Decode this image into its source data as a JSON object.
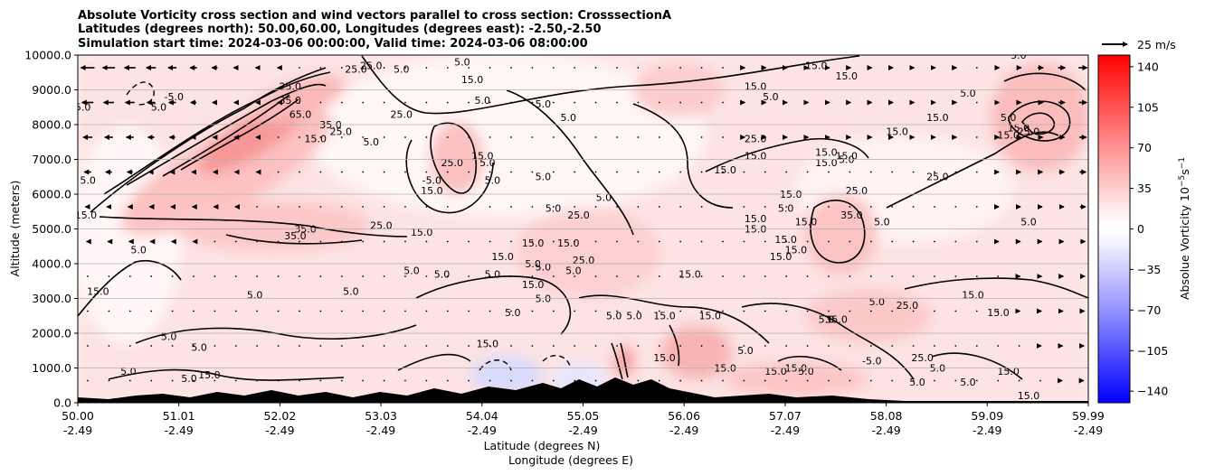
{
  "chart_data": {
    "type": "heatmap",
    "title_lines": [
      "Absolute Vorticity cross section and wind vectors parallel to cross section: CrosssectionA",
      "Latitudes (degrees north): 50.00,60.00, Longitudes (degrees east): -2.50,-2.50",
      "Simulation start time: 2024-03-06 00:00:00, Valid time: 2024-03-06 08:00:00"
    ],
    "ylabel": "Altitude (meters)",
    "xlabel_lines": [
      "Latitude (degrees N)",
      "Longitude (degrees E)"
    ],
    "x_tick_labels": [
      [
        "50.00",
        "-2.49"
      ],
      [
        "51.01",
        "-2.49"
      ],
      [
        "52.02",
        "-2.49"
      ],
      [
        "53.03",
        "-2.49"
      ],
      [
        "54.04",
        "-2.49"
      ],
      [
        "55.05",
        "-2.49"
      ],
      [
        "56.06",
        "-2.49"
      ],
      [
        "57.07",
        "-2.49"
      ],
      [
        "58.08",
        "-2.49"
      ],
      [
        "59.09",
        "-2.49"
      ],
      [
        "59.99",
        "-2.49"
      ]
    ],
    "xlim": [
      50.0,
      59.99
    ],
    "y_ticks": [
      0,
      1000,
      2000,
      3000,
      4000,
      5000,
      6000,
      7000,
      8000,
      9000,
      10000
    ],
    "y_tick_labels": [
      "0.0",
      "1000.0",
      "2000.0",
      "3000.0",
      "4000.0",
      "5000.0",
      "6000.0",
      "7000.0",
      "8000.0",
      "9000.0",
      "10000.0"
    ],
    "ylim": [
      0,
      10000
    ],
    "grid": "horizontal",
    "colorbar": {
      "label": "Absolue Vorticity 10$^{-5}$s$^{-1}$",
      "label_main": "Absolue Vorticity 10",
      "label_exp1": "−5",
      "label_mid": "s",
      "label_exp2": "−1",
      "ticks": [
        140,
        105,
        70,
        35,
        0,
        -35,
        -70,
        -105,
        -140
      ],
      "tick_labels": [
        "140",
        "105",
        "70",
        "35",
        "0",
        "−35",
        "−70",
        "−105",
        "−140"
      ],
      "range": [
        -150,
        150
      ],
      "colors": {
        "max": "#ff0000",
        "mid": "#ffffff",
        "min": "#0000ff"
      }
    },
    "wind_key": {
      "label": "25 m/s",
      "speed": 25
    },
    "contour_levels_labeled": [
      -5.0,
      5.0,
      15.0,
      25.0,
      35.0,
      65.0
    ],
    "contour_labels": [
      {
        "x": 50.95,
        "y": 8700,
        "v": "-5.0"
      },
      {
        "x": 50.05,
        "y": 8400,
        "v": "5.0"
      },
      {
        "x": 50.8,
        "y": 8400,
        "v": "5.0"
      },
      {
        "x": 50.1,
        "y": 6300,
        "v": "5.0"
      },
      {
        "x": 50.08,
        "y": 5300,
        "v": "15.0"
      },
      {
        "x": 52.75,
        "y": 9500,
        "v": "25.0"
      },
      {
        "x": 52.9,
        "y": 9600,
        "v": "25.0"
      },
      {
        "x": 53.2,
        "y": 9500,
        "v": "5.0"
      },
      {
        "x": 52.1,
        "y": 9000,
        "v": "25.0"
      },
      {
        "x": 52.1,
        "y": 8600,
        "v": "35.0"
      },
      {
        "x": 52.2,
        "y": 8200,
        "v": "65.0"
      },
      {
        "x": 52.5,
        "y": 7900,
        "v": "35.0"
      },
      {
        "x": 52.6,
        "y": 7700,
        "v": "25.0"
      },
      {
        "x": 52.35,
        "y": 7500,
        "v": "15.0"
      },
      {
        "x": 52.9,
        "y": 7400,
        "v": "5.0"
      },
      {
        "x": 53.2,
        "y": 8200,
        "v": "25.0"
      },
      {
        "x": 53.8,
        "y": 9700,
        "v": "5.0"
      },
      {
        "x": 53.9,
        "y": 9200,
        "v": "15.0"
      },
      {
        "x": 54.0,
        "y": 8600,
        "v": "5.0"
      },
      {
        "x": 54.0,
        "y": 7000,
        "v": "15.0"
      },
      {
        "x": 53.5,
        "y": 6300,
        "v": "-5.0"
      },
      {
        "x": 53.5,
        "y": 6000,
        "v": "15.0"
      },
      {
        "x": 53.7,
        "y": 6800,
        "v": "25.0"
      },
      {
        "x": 54.05,
        "y": 6800,
        "v": "5.0"
      },
      {
        "x": 54.1,
        "y": 6300,
        "v": "5.0"
      },
      {
        "x": 54.6,
        "y": 8500,
        "v": "5.0"
      },
      {
        "x": 54.85,
        "y": 8100,
        "v": "5.0"
      },
      {
        "x": 54.6,
        "y": 6400,
        "v": "5.0"
      },
      {
        "x": 54.7,
        "y": 5500,
        "v": "5.0"
      },
      {
        "x": 54.95,
        "y": 5300,
        "v": "25.0"
      },
      {
        "x": 55.2,
        "y": 5800,
        "v": "5.0"
      },
      {
        "x": 54.85,
        "y": 4500,
        "v": "15.0"
      },
      {
        "x": 52.15,
        "y": 4700,
        "v": "35.0"
      },
      {
        "x": 52.25,
        "y": 4900,
        "v": "35.0"
      },
      {
        "x": 53.0,
        "y": 5000,
        "v": "25.0"
      },
      {
        "x": 53.4,
        "y": 4800,
        "v": "15.0"
      },
      {
        "x": 53.3,
        "y": 3700,
        "v": "5.0"
      },
      {
        "x": 53.6,
        "y": 3600,
        "v": "5.0"
      },
      {
        "x": 54.1,
        "y": 3600,
        "v": "5.0"
      },
      {
        "x": 54.2,
        "y": 4100,
        "v": "15.0"
      },
      {
        "x": 54.5,
        "y": 3900,
        "v": "5.0"
      },
      {
        "x": 54.5,
        "y": 4500,
        "v": "15.0"
      },
      {
        "x": 54.5,
        "y": 3300,
        "v": "15.0"
      },
      {
        "x": 54.6,
        "y": 3800,
        "v": "5.0"
      },
      {
        "x": 55.0,
        "y": 4000,
        "v": "25.0"
      },
      {
        "x": 54.9,
        "y": 3700,
        "v": "5.0"
      },
      {
        "x": 54.6,
        "y": 2900,
        "v": "5.0"
      },
      {
        "x": 55.3,
        "y": 2400,
        "v": "5.0"
      },
      {
        "x": 55.5,
        "y": 2400,
        "v": "5.0"
      },
      {
        "x": 55.8,
        "y": 2400,
        "v": "15.0"
      },
      {
        "x": 56.25,
        "y": 2400,
        "v": "15.0"
      },
      {
        "x": 56.05,
        "y": 3600,
        "v": "15.0"
      },
      {
        "x": 56.4,
        "y": 6600,
        "v": "15.0"
      },
      {
        "x": 56.7,
        "y": 7500,
        "v": "25.0"
      },
      {
        "x": 56.7,
        "y": 7000,
        "v": "15.0"
      },
      {
        "x": 56.7,
        "y": 9000,
        "v": "15.0"
      },
      {
        "x": 56.85,
        "y": 8700,
        "v": "5.0"
      },
      {
        "x": 56.7,
        "y": 5200,
        "v": "15.0"
      },
      {
        "x": 57.05,
        "y": 5900,
        "v": "15.0"
      },
      {
        "x": 57.0,
        "y": 5500,
        "v": "5.0"
      },
      {
        "x": 56.7,
        "y": 4900,
        "v": "15.0"
      },
      {
        "x": 57.2,
        "y": 5100,
        "v": "15.0"
      },
      {
        "x": 57.0,
        "y": 4600,
        "v": "15.0"
      },
      {
        "x": 56.95,
        "y": 4100,
        "v": "15.0"
      },
      {
        "x": 57.1,
        "y": 4300,
        "v": "15.0"
      },
      {
        "x": 57.4,
        "y": 7100,
        "v": "15.0"
      },
      {
        "x": 57.4,
        "y": 6800,
        "v": "15.0"
      },
      {
        "x": 57.6,
        "y": 7000,
        "v": "15.0"
      },
      {
        "x": 57.6,
        "y": 6900,
        "v": "5.0"
      },
      {
        "x": 57.7,
        "y": 6000,
        "v": "25.0"
      },
      {
        "x": 57.3,
        "y": 9600,
        "v": "15.0"
      },
      {
        "x": 57.6,
        "y": 9300,
        "v": "15.0"
      },
      {
        "x": 57.65,
        "y": 5300,
        "v": "35.0"
      },
      {
        "x": 57.95,
        "y": 5100,
        "v": "5.0"
      },
      {
        "x": 58.5,
        "y": 6400,
        "v": "25.0"
      },
      {
        "x": 58.1,
        "y": 7700,
        "v": "15.0"
      },
      {
        "x": 58.5,
        "y": 8100,
        "v": "15.0"
      },
      {
        "x": 58.8,
        "y": 8800,
        "v": "5.0"
      },
      {
        "x": 59.3,
        "y": 7800,
        "v": "15.0"
      },
      {
        "x": 59.2,
        "y": 8100,
        "v": "5.0"
      },
      {
        "x": 59.2,
        "y": 7600,
        "v": "15.0"
      },
      {
        "x": 59.4,
        "y": 7700,
        "v": "25.0"
      },
      {
        "x": 59.3,
        "y": 9900,
        "v": "5.0"
      },
      {
        "x": 59.4,
        "y": 5100,
        "v": "5.0"
      },
      {
        "x": 57.5,
        "y": 2300,
        "v": "35.0"
      },
      {
        "x": 57.4,
        "y": 2300,
        "v": "5.0"
      },
      {
        "x": 57.9,
        "y": 2800,
        "v": "5.0"
      },
      {
        "x": 58.2,
        "y": 2700,
        "v": "25.0"
      },
      {
        "x": 58.85,
        "y": 3000,
        "v": "15.0"
      },
      {
        "x": 59.1,
        "y": 2500,
        "v": "15.0"
      },
      {
        "x": 57.85,
        "y": 1100,
        "v": "-5.0"
      },
      {
        "x": 58.35,
        "y": 1200,
        "v": "25.0"
      },
      {
        "x": 58.3,
        "y": 500,
        "v": "5.0"
      },
      {
        "x": 58.5,
        "y": 900,
        "v": "5.0"
      },
      {
        "x": 58.8,
        "y": 500,
        "v": "5.0"
      },
      {
        "x": 59.2,
        "y": 800,
        "v": "15.0"
      },
      {
        "x": 59.4,
        "y": 100,
        "v": "15.0"
      },
      {
        "x": 51.3,
        "y": 700,
        "v": "15.0"
      },
      {
        "x": 51.1,
        "y": 600,
        "v": "5.0"
      },
      {
        "x": 50.5,
        "y": 800,
        "v": "5.0"
      },
      {
        "x": 50.2,
        "y": 3100,
        "v": "15.0"
      },
      {
        "x": 50.6,
        "y": 4300,
        "v": "5.0"
      },
      {
        "x": 51.2,
        "y": 1500,
        "v": "5.0"
      },
      {
        "x": 50.9,
        "y": 1800,
        "v": "5.0"
      },
      {
        "x": 51.75,
        "y": 3000,
        "v": "5.0"
      },
      {
        "x": 52.7,
        "y": 3100,
        "v": "5.0"
      },
      {
        "x": 54.3,
        "y": 2500,
        "v": "5.0"
      },
      {
        "x": 54.05,
        "y": 1600,
        "v": "15.0"
      },
      {
        "x": 55.8,
        "y": 1200,
        "v": "15.0"
      },
      {
        "x": 56.6,
        "y": 1400,
        "v": "5.0"
      },
      {
        "x": 56.4,
        "y": 900,
        "v": "15.0"
      },
      {
        "x": 56.9,
        "y": 800,
        "v": "15.0"
      },
      {
        "x": 57.2,
        "y": 800,
        "v": "5.0"
      },
      {
        "x": 57.1,
        "y": 900,
        "v": "15.0"
      }
    ]
  }
}
